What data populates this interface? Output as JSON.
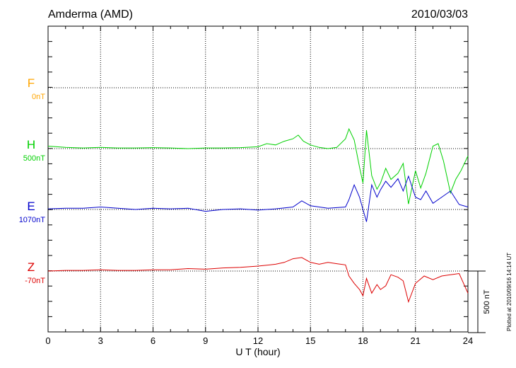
{
  "header": {
    "station": "Amderma (AMD)",
    "date": "2010/03/03"
  },
  "plot_note": "Plotted at 2010/09/16 14:14 UT",
  "colors": {
    "F": "#ffa500",
    "H": "#00d000",
    "E": "#0000cc",
    "Z": "#dd0000",
    "axis": "#000000"
  },
  "chart_data": {
    "type": "line",
    "title": "Amderma (AMD)",
    "xlabel": "U T (hour)",
    "xlim": [
      0,
      24
    ],
    "x_ticks": [
      "0",
      "3",
      "6",
      "9",
      "12",
      "15",
      "18",
      "21",
      "24"
    ],
    "scale_bar": "500 nT",
    "grid": true,
    "series": [
      {
        "name": "F",
        "baseline": "0nT",
        "x": [],
        "values": []
      },
      {
        "name": "H",
        "baseline": "500nT",
        "x": [
          0,
          1,
          2,
          3,
          4,
          5,
          6,
          7,
          8,
          9,
          10,
          11,
          12,
          12.5,
          13,
          13.5,
          14,
          14.3,
          14.6,
          15,
          15.5,
          16,
          16.5,
          17,
          17.2,
          17.5,
          17.8,
          18,
          18.2,
          18.5,
          18.8,
          19,
          19.3,
          19.6,
          20,
          20.3,
          20.6,
          21,
          21.3,
          21.6,
          22,
          22.3,
          22.6,
          23,
          23.3,
          23.6,
          24
        ],
        "values": [
          20,
          10,
          5,
          10,
          5,
          5,
          8,
          5,
          0,
          5,
          5,
          8,
          15,
          40,
          30,
          60,
          80,
          110,
          60,
          30,
          10,
          0,
          10,
          80,
          160,
          70,
          -150,
          -280,
          150,
          -220,
          -330,
          -280,
          -160,
          -250,
          -200,
          -120,
          -450,
          -180,
          -320,
          -200,
          20,
          40,
          -100,
          -360,
          -250,
          -180,
          -60
        ]
      },
      {
        "name": "E",
        "baseline": "1070nT",
        "x": [
          0,
          1,
          2,
          3,
          4,
          5,
          6,
          7,
          8,
          9,
          10,
          11,
          12,
          13,
          14,
          14.5,
          15,
          16,
          17,
          17.2,
          17.5,
          17.8,
          18,
          18.2,
          18.5,
          18.8,
          19,
          19.3,
          19.6,
          20,
          20.3,
          20.6,
          21,
          21.3,
          21.6,
          22,
          22.5,
          23,
          23.5,
          24
        ],
        "values": [
          5,
          10,
          10,
          20,
          10,
          0,
          10,
          5,
          10,
          -15,
          0,
          5,
          -5,
          5,
          20,
          70,
          30,
          10,
          20,
          80,
          200,
          100,
          0,
          -100,
          200,
          100,
          160,
          230,
          180,
          250,
          150,
          270,
          100,
          80,
          150,
          50,
          100,
          150,
          40,
          20
        ]
      },
      {
        "name": "Z",
        "baseline": "-70nT",
        "x": [
          0,
          1,
          2,
          3,
          4,
          5,
          6,
          7,
          8,
          9,
          10,
          11,
          12,
          13,
          13.5,
          14,
          14.5,
          15,
          15.5,
          16,
          16.5,
          17,
          17.2,
          17.5,
          17.8,
          18,
          18.2,
          18.5,
          18.8,
          19,
          19.3,
          19.6,
          20,
          20.3,
          20.6,
          21,
          21.5,
          22,
          22.5,
          23,
          23.5,
          24
        ],
        "values": [
          0,
          5,
          5,
          10,
          5,
          5,
          10,
          10,
          20,
          15,
          25,
          30,
          40,
          55,
          70,
          100,
          110,
          70,
          55,
          70,
          60,
          50,
          -40,
          -100,
          -150,
          -200,
          -60,
          -180,
          -110,
          -150,
          -120,
          -30,
          -50,
          -80,
          -250,
          -100,
          -40,
          -70,
          -40,
          -30,
          -20,
          -180
        ]
      }
    ]
  }
}
